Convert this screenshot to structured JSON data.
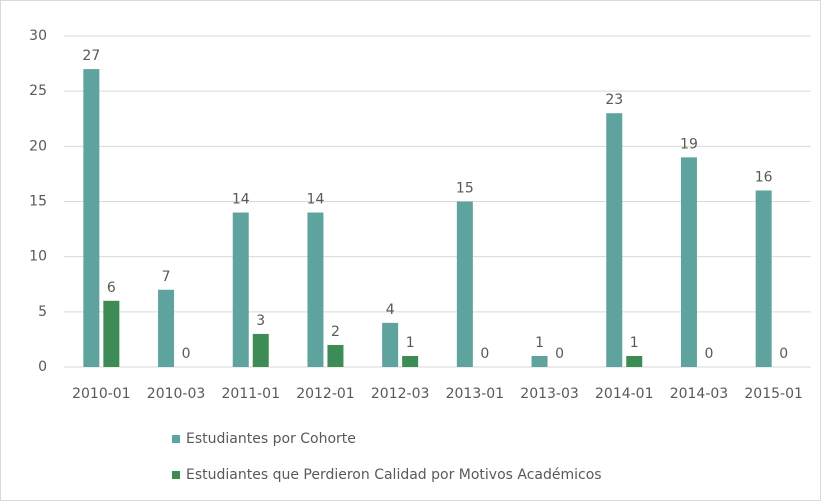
{
  "chart_data": {
    "type": "bar",
    "categories": [
      "2010-01",
      "2010-03",
      "2011-01",
      "2012-01",
      "2012-03",
      "2013-01",
      "2013-03",
      "2014-01",
      "2014-03",
      "2015-01"
    ],
    "series": [
      {
        "name": "Estudiantes por Cohorte",
        "color": "#5fa39e",
        "values": [
          27,
          7,
          14,
          14,
          4,
          15,
          1,
          23,
          19,
          16
        ]
      },
      {
        "name": "Estudiantes que Perdieron Calidad por Motivos Académicos",
        "color": "#3d8b55",
        "values": [
          6,
          0,
          3,
          2,
          1,
          0,
          0,
          1,
          0,
          0
        ]
      }
    ],
    "ylim": [
      0,
      30
    ],
    "yticks": [
      0,
      5,
      10,
      15,
      20,
      25,
      30
    ],
    "grid": true
  }
}
